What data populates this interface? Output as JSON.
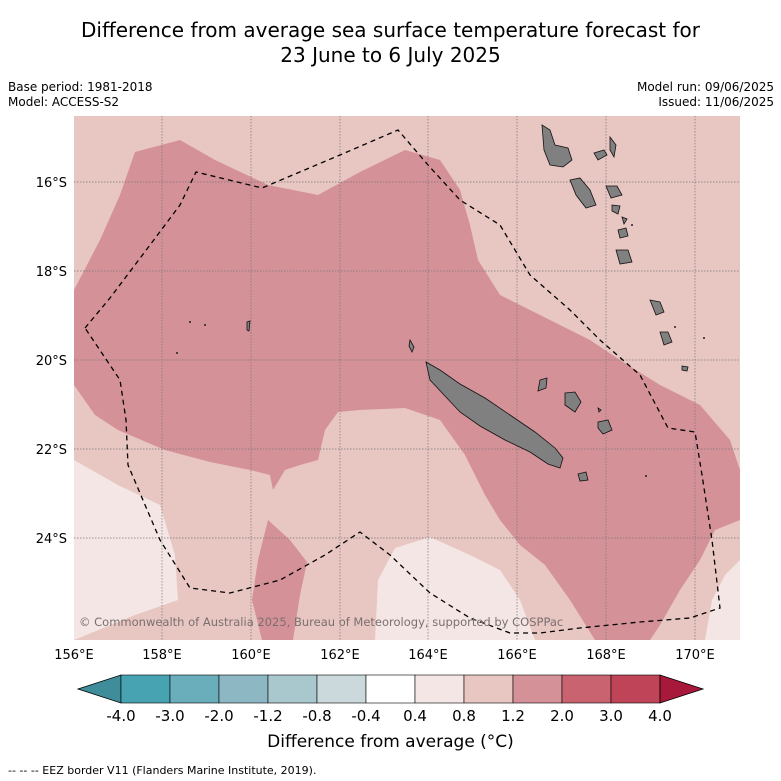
{
  "header": {
    "title_line1": "Difference from average sea surface temperature forecast for",
    "title_line2": "23 June to 6 July 2025",
    "base_period": "Base period: 1981-2018",
    "model": "Model: ACCESS-S2",
    "model_run": "Model run: 09/06/2025",
    "issued": "Issued: 11/06/2025"
  },
  "map": {
    "lon_ticks": [
      "156°E",
      "158°E",
      "160°E",
      "162°E",
      "164°E",
      "166°E",
      "168°E",
      "170°E"
    ],
    "lat_ticks": [
      "16°S",
      "18°S",
      "20°S",
      "22°S",
      "24°S"
    ],
    "copyright": "© Commonwealth of Australia 2025, Bureau of Meteorology, supported by COSPPac",
    "colors": {
      "class_0.4_0.8": "#f4e6e4",
      "class_0.8_1.2": "#e8c6c2",
      "class_1.2_2.0": "#d59198",
      "land": "#808080",
      "grid": "#777777"
    }
  },
  "colorbar": {
    "labels": [
      "-4.0",
      "-3.0",
      "-2.0",
      "-1.2",
      "-0.8",
      "-0.4",
      "0.4",
      "0.8",
      "1.2",
      "2.0",
      "3.0",
      "4.0"
    ],
    "colors": [
      "#3f8d9a",
      "#47a3b2",
      "#6aadbb",
      "#8db8c3",
      "#a8c8cd",
      "#cbd9dc",
      "#ffffff",
      "#f4e6e4",
      "#e8c6c2",
      "#d59198",
      "#c96370",
      "#c04457",
      "#a7183a"
    ],
    "title": "Difference from average (°C)"
  },
  "legend": {
    "eez": "--  --  -- EEZ border V11 (Flanders Marine Institute, 2019)."
  }
}
